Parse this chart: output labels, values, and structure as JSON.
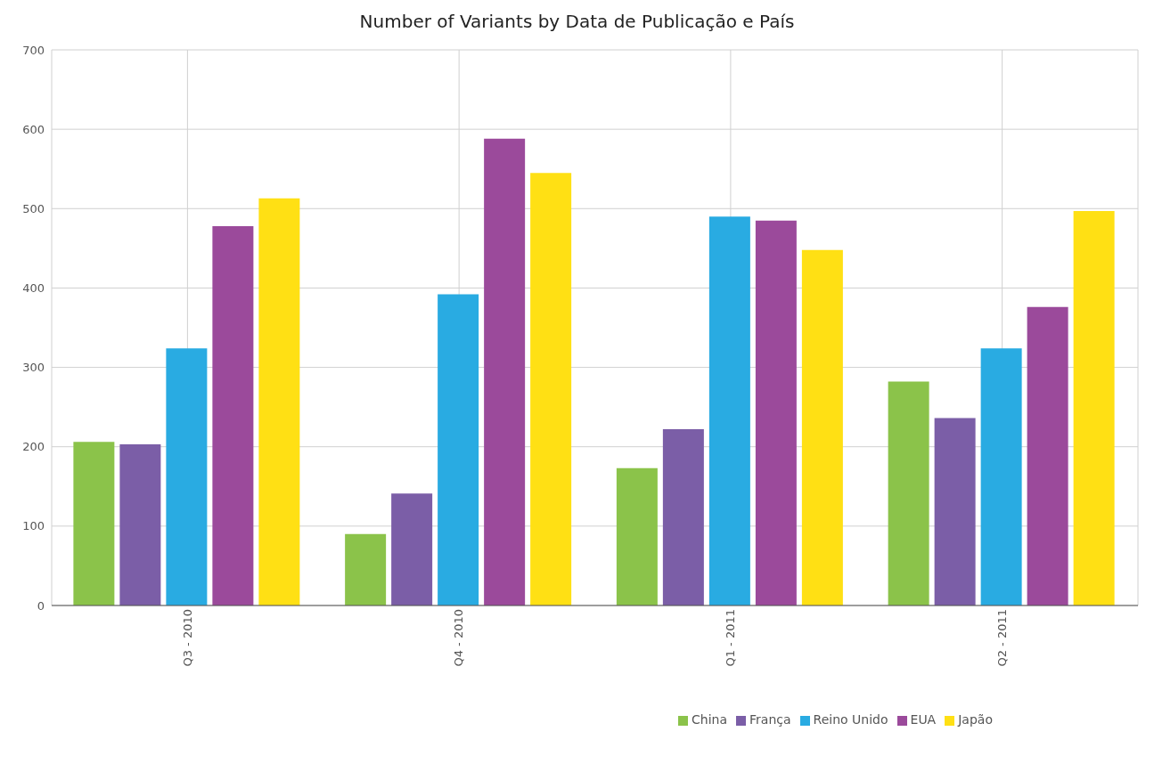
{
  "chart_data": {
    "type": "bar",
    "title": "Number of Variants by Data de Publicação e País",
    "categories": [
      "Q3 - 2010",
      "Q4 - 2010",
      "Q1 - 2011",
      "Q2 - 2011"
    ],
    "series": [
      {
        "name": "China",
        "color": "#8bc34a",
        "values": [
          206,
          90,
          173,
          282
        ]
      },
      {
        "name": "França",
        "color": "#7b5ea7",
        "values": [
          203,
          141,
          222,
          236
        ]
      },
      {
        "name": "Reino Unido",
        "color": "#29abe2",
        "values": [
          324,
          392,
          490,
          324
        ]
      },
      {
        "name": "EUA",
        "color": "#9b4a9b",
        "values": [
          478,
          588,
          485,
          376
        ]
      },
      {
        "name": "Japão",
        "color": "#ffe014",
        "values": [
          513,
          545,
          448,
          497
        ]
      }
    ],
    "ylim": [
      0,
      700
    ],
    "yticks": [
      0,
      100,
      200,
      300,
      400,
      500,
      600,
      700
    ],
    "grid": true,
    "legend": "bottom"
  }
}
